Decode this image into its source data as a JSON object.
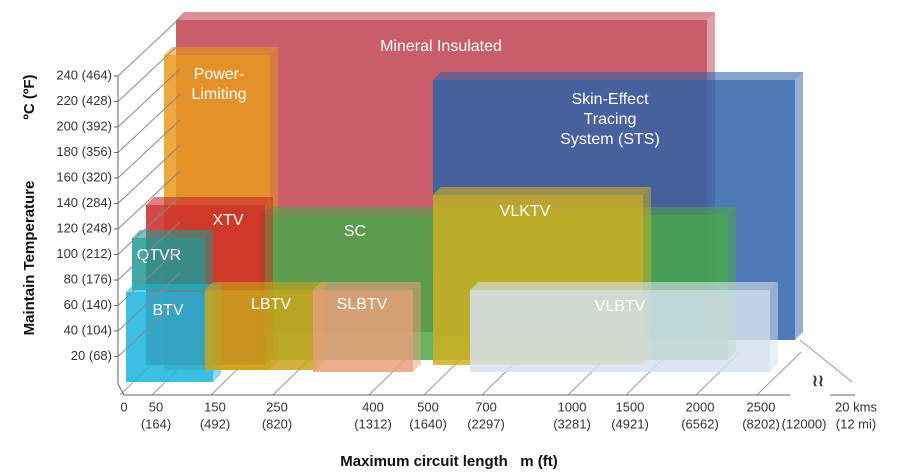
{
  "axis_titles": {
    "y_name": "Maintain Temperature",
    "y_unit": "ºC (ºF)",
    "x": "Maximum circuit length   m (ft)"
  },
  "y_ticks": [
    "240 (464)",
    "220 (428)",
    "200 (392)",
    "180 (356)",
    "160 (320)",
    "140 (284)",
    "120 (248)",
    "100 (212)",
    "80 (176)",
    "60 (140)",
    "40 (104)",
    "20 (68)"
  ],
  "x_ticks": [
    {
      "top": "0"
    },
    {
      "top": "50",
      "bottom": "(164)"
    },
    {
      "top": "150",
      "bottom": "(492)"
    },
    {
      "top": "250",
      "bottom": "(820)"
    },
    {
      "top": "400",
      "bottom": "(1312)"
    },
    {
      "top": "500",
      "bottom": "(1640)"
    },
    {
      "top": "700",
      "bottom": "(2297)"
    },
    {
      "top": "1000",
      "bottom": "(3281)"
    },
    {
      "top": "1500",
      "bottom": "(4921)"
    },
    {
      "top": "2000",
      "bottom": "(6562)"
    },
    {
      "top": "2500",
      "bottom": "(8202)"
    },
    {
      "bottom": "(12000)"
    },
    {
      "top": "20 kms",
      "bottom": "(12 mi)"
    }
  ],
  "boxes": [
    {
      "label": [
        "Mineral Insulated"
      ]
    },
    {
      "label": [
        "Skin-Effect",
        "Tracing",
        "System (STS)"
      ]
    },
    {
      "label": [
        "Power-",
        "Limiting"
      ]
    },
    {
      "label": [
        "SC"
      ]
    },
    {
      "label": [
        "XTV"
      ]
    },
    {
      "label": [
        "VLKTV"
      ]
    },
    {
      "label": [
        "QTVR"
      ]
    },
    {
      "label": [
        "BTV"
      ]
    },
    {
      "label": [
        "LBTV"
      ]
    },
    {
      "label": [
        "SLBTV"
      ]
    },
    {
      "label": [
        "VLBTV"
      ]
    }
  ]
}
